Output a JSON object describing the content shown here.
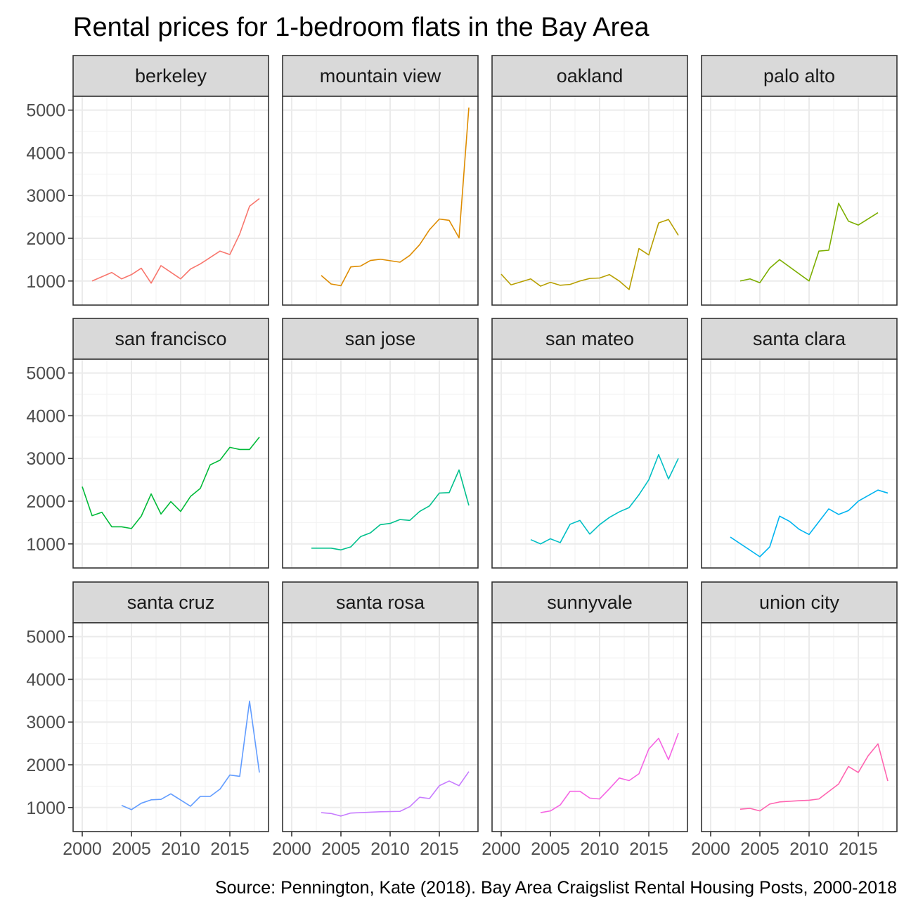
{
  "chart_data": {
    "type": "line",
    "title": "Rental prices for 1-bedroom flats in the Bay Area",
    "caption": "Source: Pennington, Kate (2018). Bay Area Craigslist Rental Housing Posts, 2000-2018",
    "xlabel": "",
    "ylabel": "",
    "xlim": [
      2000,
      2018
    ],
    "ylim": [
      1000,
      5000
    ],
    "x_ticks": [
      2000,
      2005,
      2010,
      2015
    ],
    "y_ticks": [
      1000,
      2000,
      3000,
      4000,
      5000
    ],
    "grid": true,
    "legend": "none",
    "facets": [
      {
        "name": "berkeley",
        "color": "#F8766D",
        "points": [
          [
            2001,
            1000
          ],
          [
            2003,
            1200
          ],
          [
            2004,
            1050
          ],
          [
            2005,
            1150
          ],
          [
            2006,
            1300
          ],
          [
            2007,
            950
          ],
          [
            2008,
            1360
          ],
          [
            2010,
            1050
          ],
          [
            2011,
            1280
          ],
          [
            2012,
            1400
          ],
          [
            2014,
            1700
          ],
          [
            2015,
            1620
          ],
          [
            2016,
            2100
          ],
          [
            2017,
            2750
          ],
          [
            2018,
            2930
          ]
        ]
      },
      {
        "name": "mountain view",
        "color": "#DE8C00",
        "points": [
          [
            2003,
            1130
          ],
          [
            2004,
            930
          ],
          [
            2005,
            890
          ],
          [
            2006,
            1330
          ],
          [
            2007,
            1350
          ],
          [
            2008,
            1480
          ],
          [
            2009,
            1510
          ],
          [
            2011,
            1440
          ],
          [
            2012,
            1600
          ],
          [
            2013,
            1850
          ],
          [
            2014,
            2200
          ],
          [
            2015,
            2450
          ],
          [
            2016,
            2420
          ],
          [
            2017,
            2010
          ],
          [
            2018,
            5060
          ]
        ]
      },
      {
        "name": "oakland",
        "color": "#B79F00",
        "points": [
          [
            2000,
            1160
          ],
          [
            2001,
            910
          ],
          [
            2003,
            1050
          ],
          [
            2004,
            880
          ],
          [
            2005,
            970
          ],
          [
            2006,
            900
          ],
          [
            2007,
            920
          ],
          [
            2008,
            1000
          ],
          [
            2009,
            1060
          ],
          [
            2010,
            1070
          ],
          [
            2011,
            1150
          ],
          [
            2012,
            1000
          ],
          [
            2013,
            800
          ],
          [
            2014,
            1760
          ],
          [
            2015,
            1610
          ],
          [
            2016,
            2360
          ],
          [
            2017,
            2440
          ],
          [
            2018,
            2070
          ]
        ]
      },
      {
        "name": "palo alto",
        "color": "#7CAE00",
        "points": [
          [
            2003,
            1000
          ],
          [
            2004,
            1050
          ],
          [
            2005,
            960
          ],
          [
            2006,
            1300
          ],
          [
            2007,
            1500
          ],
          [
            2010,
            1000
          ],
          [
            2011,
            1700
          ],
          [
            2012,
            1720
          ],
          [
            2013,
            2820
          ],
          [
            2014,
            2400
          ],
          [
            2015,
            2310
          ],
          [
            2017,
            2600
          ]
        ]
      },
      {
        "name": "san francisco",
        "color": "#00BA38",
        "points": [
          [
            2000,
            2340
          ],
          [
            2001,
            1660
          ],
          [
            2002,
            1740
          ],
          [
            2003,
            1400
          ],
          [
            2004,
            1400
          ],
          [
            2005,
            1360
          ],
          [
            2006,
            1650
          ],
          [
            2007,
            2170
          ],
          [
            2008,
            1700
          ],
          [
            2009,
            1990
          ],
          [
            2010,
            1760
          ],
          [
            2011,
            2110
          ],
          [
            2012,
            2300
          ],
          [
            2013,
            2850
          ],
          [
            2014,
            2960
          ],
          [
            2015,
            3260
          ],
          [
            2016,
            3210
          ],
          [
            2017,
            3210
          ],
          [
            2018,
            3500
          ]
        ]
      },
      {
        "name": "san jose",
        "color": "#00C08B",
        "points": [
          [
            2002,
            900
          ],
          [
            2004,
            900
          ],
          [
            2005,
            860
          ],
          [
            2006,
            930
          ],
          [
            2007,
            1170
          ],
          [
            2008,
            1260
          ],
          [
            2009,
            1450
          ],
          [
            2010,
            1480
          ],
          [
            2011,
            1570
          ],
          [
            2012,
            1550
          ],
          [
            2013,
            1760
          ],
          [
            2014,
            1890
          ],
          [
            2015,
            2190
          ],
          [
            2016,
            2200
          ],
          [
            2017,
            2730
          ],
          [
            2018,
            1900
          ]
        ]
      },
      {
        "name": "san mateo",
        "color": "#00BFC4",
        "points": [
          [
            2003,
            1100
          ],
          [
            2004,
            1000
          ],
          [
            2005,
            1120
          ],
          [
            2006,
            1030
          ],
          [
            2007,
            1460
          ],
          [
            2008,
            1550
          ],
          [
            2009,
            1230
          ],
          [
            2010,
            1450
          ],
          [
            2011,
            1620
          ],
          [
            2012,
            1750
          ],
          [
            2013,
            1850
          ],
          [
            2014,
            2150
          ],
          [
            2015,
            2500
          ],
          [
            2016,
            3090
          ],
          [
            2017,
            2520
          ],
          [
            2018,
            3000
          ]
        ]
      },
      {
        "name": "santa clara",
        "color": "#00B4F0",
        "points": [
          [
            2002,
            1160
          ],
          [
            2005,
            700
          ],
          [
            2006,
            930
          ],
          [
            2007,
            1650
          ],
          [
            2008,
            1530
          ],
          [
            2009,
            1340
          ],
          [
            2010,
            1220
          ],
          [
            2011,
            1520
          ],
          [
            2012,
            1820
          ],
          [
            2013,
            1690
          ],
          [
            2014,
            1780
          ],
          [
            2015,
            2000
          ],
          [
            2016,
            2130
          ],
          [
            2017,
            2260
          ],
          [
            2018,
            2190
          ]
        ]
      },
      {
        "name": "santa cruz",
        "color": "#619CFF",
        "points": [
          [
            2004,
            1050
          ],
          [
            2005,
            950
          ],
          [
            2006,
            1100
          ],
          [
            2007,
            1180
          ],
          [
            2008,
            1190
          ],
          [
            2009,
            1320
          ],
          [
            2011,
            1030
          ],
          [
            2012,
            1260
          ],
          [
            2013,
            1260
          ],
          [
            2014,
            1430
          ],
          [
            2015,
            1760
          ],
          [
            2016,
            1730
          ],
          [
            2017,
            3490
          ],
          [
            2018,
            1820
          ]
        ]
      },
      {
        "name": "santa rosa",
        "color": "#C77CFF",
        "points": [
          [
            2003,
            880
          ],
          [
            2004,
            860
          ],
          [
            2005,
            800
          ],
          [
            2006,
            870
          ],
          [
            2008,
            890
          ],
          [
            2009,
            900
          ],
          [
            2011,
            910
          ],
          [
            2012,
            1020
          ],
          [
            2013,
            1240
          ],
          [
            2014,
            1210
          ],
          [
            2015,
            1510
          ],
          [
            2016,
            1620
          ],
          [
            2017,
            1510
          ],
          [
            2018,
            1840
          ]
        ]
      },
      {
        "name": "sunnyvale",
        "color": "#F564E3",
        "points": [
          [
            2004,
            880
          ],
          [
            2005,
            920
          ],
          [
            2006,
            1060
          ],
          [
            2007,
            1380
          ],
          [
            2008,
            1380
          ],
          [
            2009,
            1220
          ],
          [
            2010,
            1200
          ],
          [
            2011,
            1440
          ],
          [
            2012,
            1690
          ],
          [
            2013,
            1630
          ],
          [
            2014,
            1790
          ],
          [
            2015,
            2370
          ],
          [
            2016,
            2620
          ],
          [
            2017,
            2120
          ],
          [
            2018,
            2740
          ]
        ]
      },
      {
        "name": "union city",
        "color": "#FF64B0",
        "points": [
          [
            2003,
            960
          ],
          [
            2004,
            980
          ],
          [
            2005,
            920
          ],
          [
            2006,
            1080
          ],
          [
            2007,
            1130
          ],
          [
            2009,
            1160
          ],
          [
            2010,
            1170
          ],
          [
            2011,
            1200
          ],
          [
            2013,
            1550
          ],
          [
            2014,
            1960
          ],
          [
            2015,
            1820
          ],
          [
            2016,
            2210
          ],
          [
            2017,
            2490
          ],
          [
            2018,
            1620
          ]
        ]
      }
    ]
  }
}
